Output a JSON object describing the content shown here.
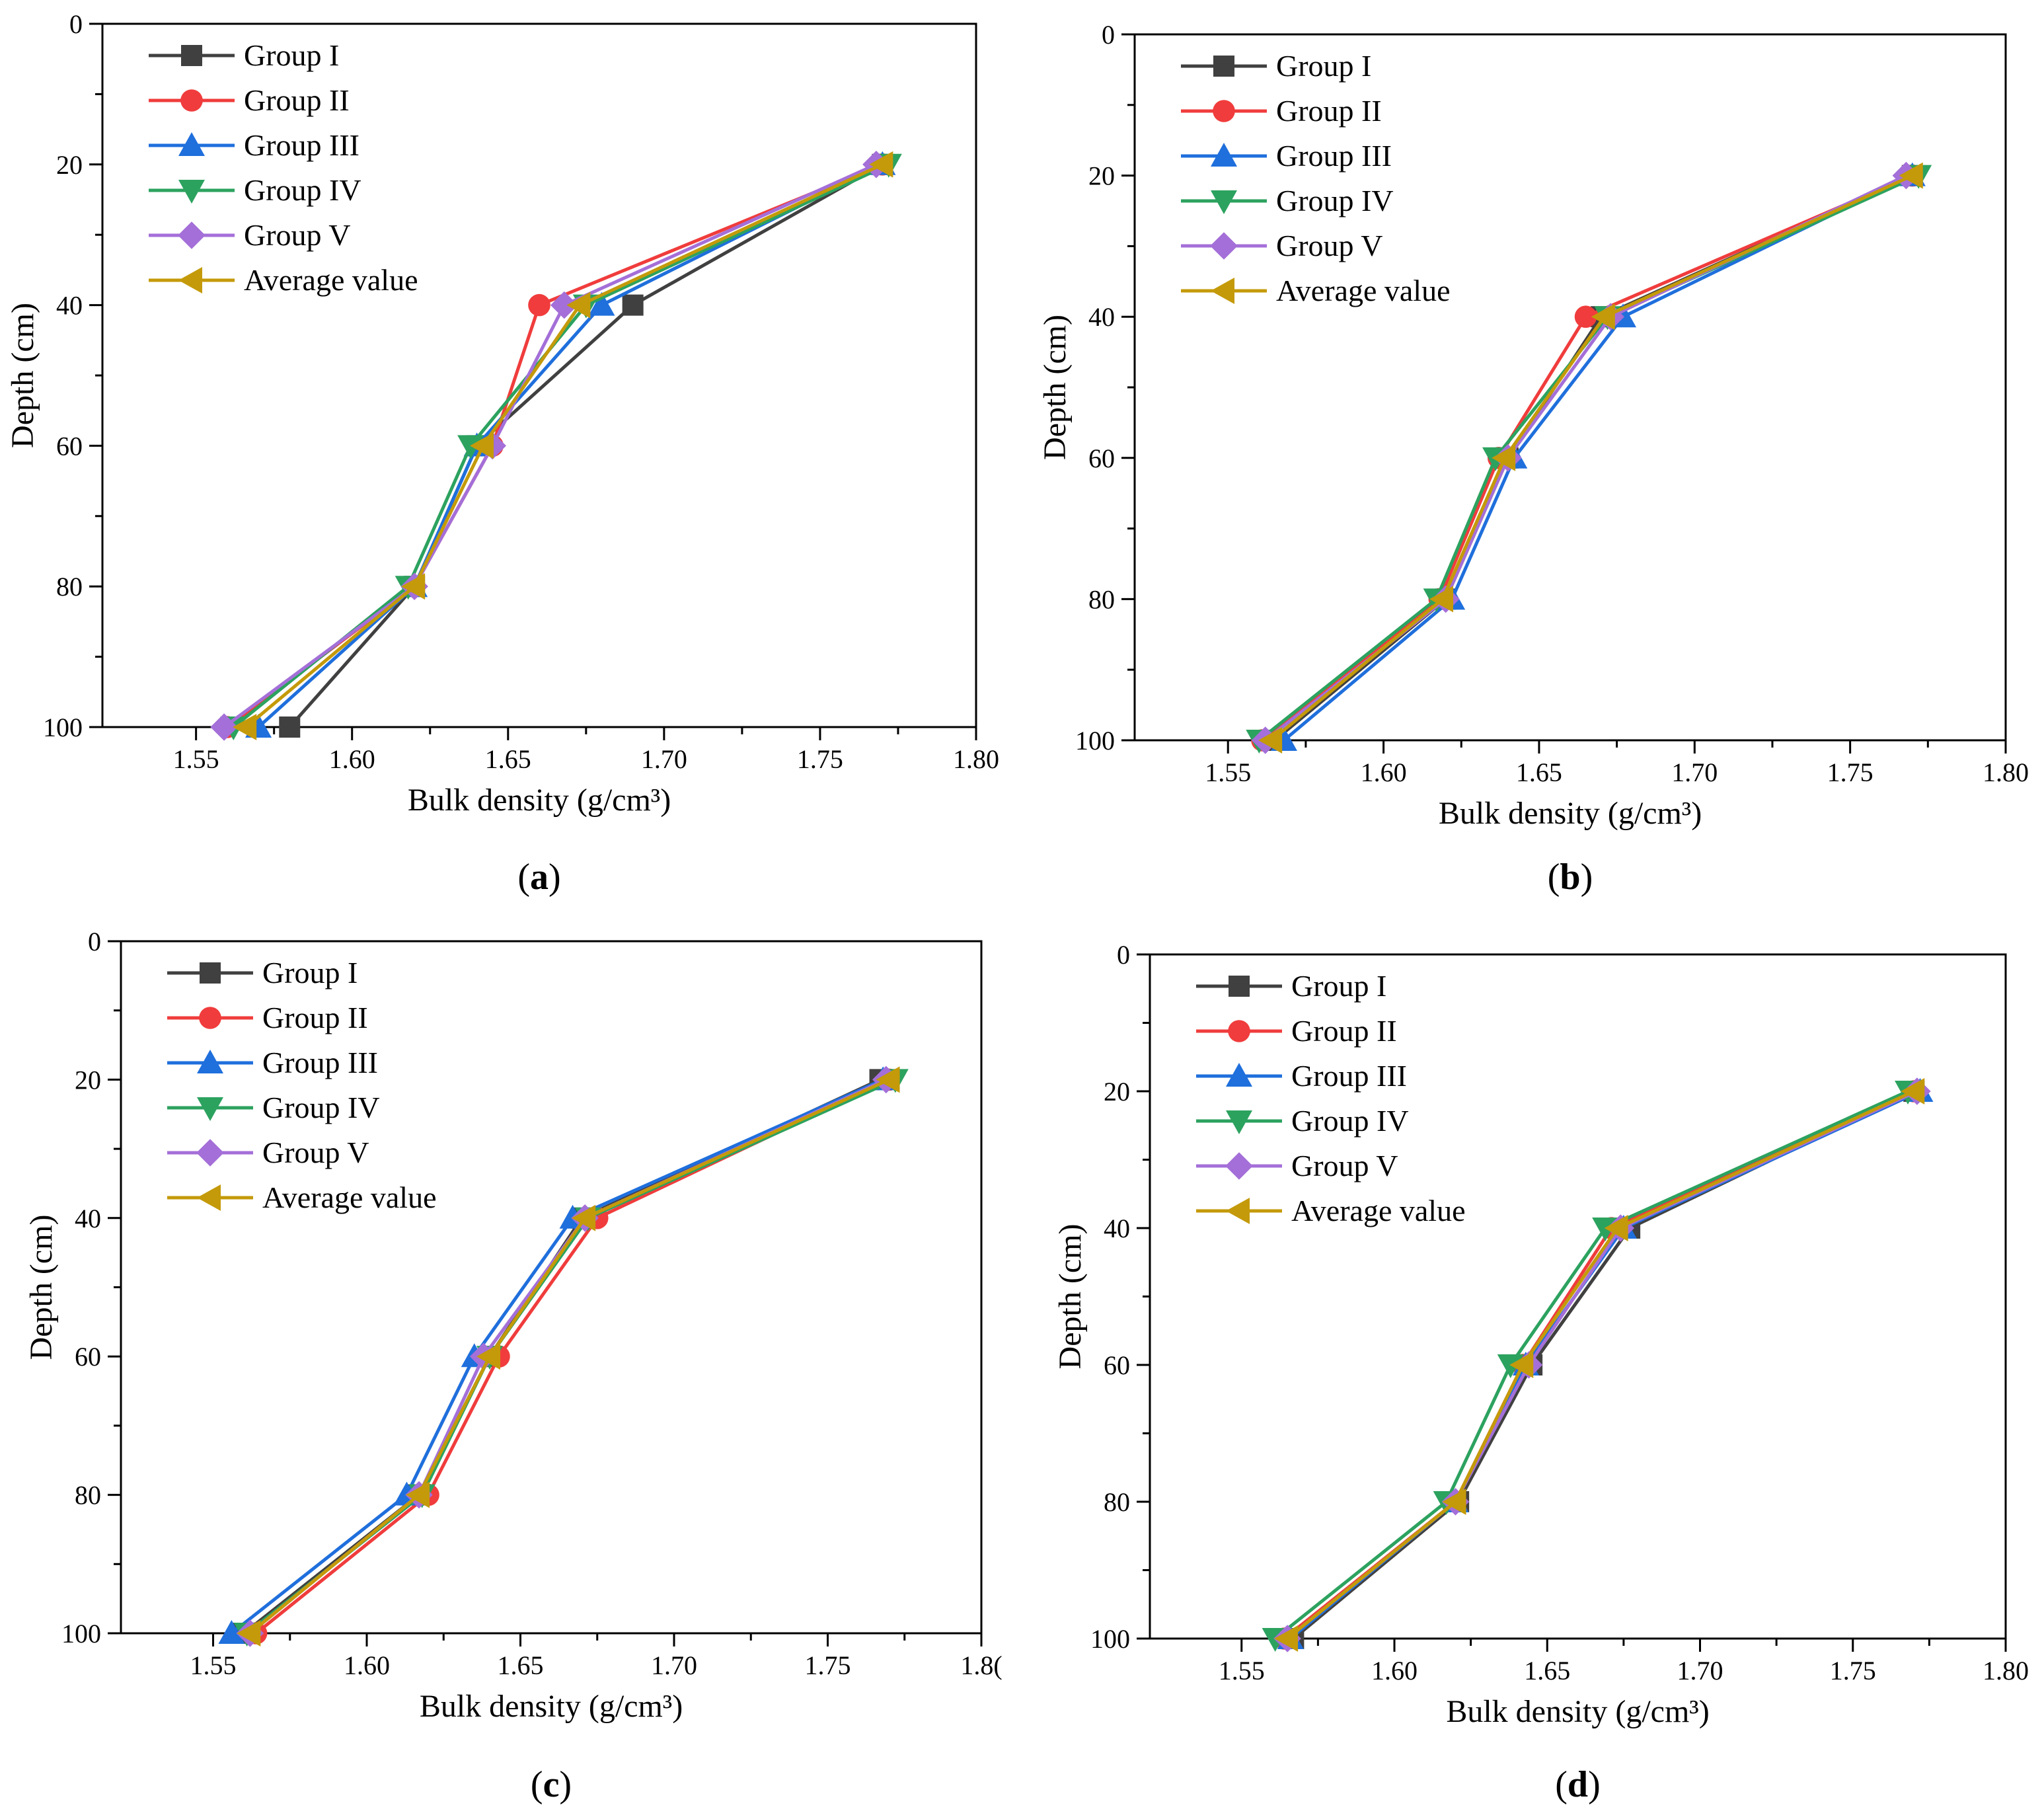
{
  "chart_data": [
    {
      "panel": "a",
      "type": "line",
      "xlabel": "Bulk density (g/cm³)",
      "ylabel": "Depth (cm)",
      "xlim": [
        1.52,
        1.8
      ],
      "ylim": [
        0,
        100
      ],
      "y_inverted": true,
      "xticks": [
        "1.55",
        "1.60",
        "1.65",
        "1.70",
        "1.75",
        "1.80"
      ],
      "yticks": [
        "0",
        "20",
        "40",
        "60",
        "80",
        "100"
      ],
      "legend_position": "top-left",
      "depth": [
        20,
        40,
        60,
        80,
        100
      ],
      "series": [
        {
          "name": "Group I",
          "values": [
            1.77,
            1.69,
            1.64,
            1.62,
            1.58
          ]
        },
        {
          "name": "Group II",
          "values": [
            1.77,
            1.66,
            1.645,
            1.62,
            1.56
          ]
        },
        {
          "name": "Group III",
          "values": [
            1.77,
            1.68,
            1.64,
            1.62,
            1.57
          ]
        },
        {
          "name": "Group IV",
          "values": [
            1.772,
            1.675,
            1.638,
            1.618,
            1.562
          ]
        },
        {
          "name": "Group V",
          "values": [
            1.768,
            1.668,
            1.645,
            1.62,
            1.559
          ]
        },
        {
          "name": "Average value",
          "values": [
            1.77,
            1.673,
            1.642,
            1.62,
            1.566
          ]
        }
      ]
    },
    {
      "panel": "b",
      "type": "line",
      "xlabel": "Bulk density (g/cm³)",
      "ylabel": "Depth (cm)",
      "xlim": [
        1.52,
        1.8
      ],
      "ylim": [
        0,
        100
      ],
      "y_inverted": true,
      "xticks": [
        "1.55",
        "1.60",
        "1.65",
        "1.70",
        "1.75",
        "1.80"
      ],
      "yticks": [
        "0",
        "20",
        "40",
        "60",
        "80",
        "100"
      ],
      "legend_position": "top-left",
      "depth": [
        20,
        40,
        60,
        80,
        100
      ],
      "series": [
        {
          "name": "Group I",
          "values": [
            1.77,
            1.67,
            1.64,
            1.62,
            1.565
          ]
        },
        {
          "name": "Group II",
          "values": [
            1.77,
            1.665,
            1.637,
            1.618,
            1.561
          ]
        },
        {
          "name": "Group III",
          "values": [
            1.77,
            1.677,
            1.642,
            1.622,
            1.568
          ]
        },
        {
          "name": "Group IV",
          "values": [
            1.772,
            1.672,
            1.636,
            1.617,
            1.56
          ]
        },
        {
          "name": "Group V",
          "values": [
            1.768,
            1.673,
            1.64,
            1.62,
            1.562
          ]
        },
        {
          "name": "Average value",
          "values": [
            1.77,
            1.671,
            1.639,
            1.619,
            1.564
          ]
        }
      ]
    },
    {
      "panel": "c",
      "type": "line",
      "xlabel": "Bulk density (g/cm³)",
      "ylabel": "Depth (cm)",
      "xlim": [
        1.52,
        1.8
      ],
      "ylim": [
        0,
        100
      ],
      "y_inverted": true,
      "xticks": [
        "1.55",
        "1.60",
        "1.65",
        "1.70",
        "1.75",
        "1.8("
      ],
      "yticks": [
        "0",
        "20",
        "40",
        "60",
        "80",
        "100"
      ],
      "legend_position": "top-left",
      "depth": [
        20,
        40,
        60,
        80,
        100
      ],
      "series": [
        {
          "name": "Group I",
          "values": [
            1.767,
            1.67,
            1.64,
            1.617,
            1.56
          ]
        },
        {
          "name": "Group II",
          "values": [
            1.77,
            1.675,
            1.643,
            1.62,
            1.564
          ]
        },
        {
          "name": "Group III",
          "values": [
            1.768,
            1.667,
            1.635,
            1.613,
            1.556
          ]
        },
        {
          "name": "Group IV",
          "values": [
            1.772,
            1.672,
            1.64,
            1.618,
            1.561
          ]
        },
        {
          "name": "Group V",
          "values": [
            1.769,
            1.671,
            1.638,
            1.617,
            1.562
          ]
        },
        {
          "name": "Average value",
          "values": [
            1.77,
            1.671,
            1.64,
            1.617,
            1.562
          ]
        }
      ]
    },
    {
      "panel": "d",
      "type": "line",
      "xlabel": "Bulk density (g/cm³)",
      "ylabel": "Depth (cm)",
      "xlim": [
        1.52,
        1.8
      ],
      "ylim": [
        0,
        100
      ],
      "y_inverted": true,
      "xticks": [
        "1.55",
        "1.60",
        "1.65",
        "1.70",
        "1.75",
        "1.80"
      ],
      "yticks": [
        "0",
        "20",
        "40",
        "60",
        "80",
        "100"
      ],
      "legend_position": "top-left",
      "depth": [
        20,
        40,
        60,
        80,
        100
      ],
      "series": [
        {
          "name": "Group I",
          "values": [
            1.77,
            1.677,
            1.645,
            1.621,
            1.567
          ]
        },
        {
          "name": "Group II",
          "values": [
            1.77,
            1.671,
            1.642,
            1.62,
            1.564
          ]
        },
        {
          "name": "Group III",
          "values": [
            1.772,
            1.675,
            1.643,
            1.62,
            1.566
          ]
        },
        {
          "name": "Group IV",
          "values": [
            1.768,
            1.669,
            1.638,
            1.617,
            1.561
          ]
        },
        {
          "name": "Group V",
          "values": [
            1.771,
            1.674,
            1.644,
            1.62,
            1.565
          ]
        },
        {
          "name": "Average value",
          "values": [
            1.77,
            1.673,
            1.642,
            1.62,
            1.565
          ]
        }
      ]
    }
  ],
  "panel_labels": [
    "a",
    "b",
    "c",
    "d"
  ],
  "styles": {
    "Group I": {
      "color": "#404040",
      "marker": "square"
    },
    "Group II": {
      "color": "#f03c3c",
      "marker": "circle"
    },
    "Group III": {
      "color": "#1f6fdc",
      "marker": "triangle-up"
    },
    "Group IV": {
      "color": "#2ca25f",
      "marker": "triangle-down"
    },
    "Group V": {
      "color": "#a46fd8",
      "marker": "diamond"
    },
    "Average value": {
      "color": "#c49a0a",
      "marker": "triangle-left"
    }
  }
}
